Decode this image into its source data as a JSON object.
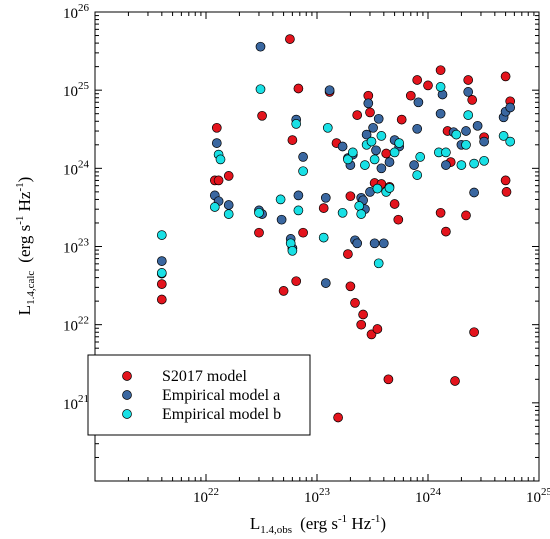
{
  "chart_data": {
    "type": "scatter",
    "title": "",
    "xscale": "log",
    "yscale": "log",
    "xlim": [
      1e+21,
      1e+25
    ],
    "ylim": [
      1e+20,
      1e+26
    ],
    "grid": false,
    "legend_position": "bottom-left",
    "xlabel": {
      "base": "L",
      "sub": "1.4,obs",
      "units_a": "(erg s",
      "sup_a": "-1",
      "units_b": " Hz",
      "sup_b": "-1",
      "units_c": ")"
    },
    "ylabel": {
      "base": "L",
      "sub": "1.4,calc",
      "units_a": "(erg s",
      "sup_a": "-1",
      "units_b": " Hz",
      "sup_b": "-1",
      "units_c": ")"
    },
    "x_ticks": [
      {
        "base": "10",
        "exp": "22",
        "value": 1e+22
      },
      {
        "base": "10",
        "exp": "23",
        "value": 1e+23
      },
      {
        "base": "10",
        "exp": "24",
        "value": 1e+24
      },
      {
        "base": "10",
        "exp": "25",
        "value": 1e+25
      }
    ],
    "y_ticks": [
      {
        "base": "10",
        "exp": "21",
        "value": 1e+21
      },
      {
        "base": "10",
        "exp": "22",
        "value": 1e+22
      },
      {
        "base": "10",
        "exp": "23",
        "value": 1e+23
      },
      {
        "base": "10",
        "exp": "24",
        "value": 1e+24
      },
      {
        "base": "10",
        "exp": "25",
        "value": 1e+25
      },
      {
        "base": "10",
        "exp": "26",
        "value": 1e+26
      }
    ],
    "series": [
      {
        "name": "S2017 model",
        "color": "#e3141d",
        "points": [
          [
            4e+21,
            3.3e+22
          ],
          [
            4e+21,
            2.1e+22
          ],
          [
            1.2e+22,
            7e+23
          ],
          [
            1.25e+22,
            3.3e+24
          ],
          [
            1.3e+22,
            7e+23
          ],
          [
            1.6e+22,
            8e+23
          ],
          [
            3e+22,
            1.5e+23
          ],
          [
            3.2e+22,
            4.7e+24
          ],
          [
            5e+22,
            2.7e+22
          ],
          [
            5.7e+22,
            4.5e+25
          ],
          [
            6e+22,
            2.3e+24
          ],
          [
            6.5e+22,
            3.6e+22
          ],
          [
            6.8e+22,
            1.05e+25
          ],
          [
            7.5e+22,
            1.5e+23
          ],
          [
            1.15e+23,
            3.1e+23
          ],
          [
            1.3e+23,
            9.5e+24
          ],
          [
            1.5e+23,
            2.1e+24
          ],
          [
            1.55e+23,
            6.5e+20
          ],
          [
            1.9e+23,
            8e+22
          ],
          [
            2e+23,
            4.4e+23
          ],
          [
            2e+23,
            3.1e+22
          ],
          [
            2.2e+23,
            1.9e+22
          ],
          [
            2.3e+23,
            4.8e+24
          ],
          [
            2.5e+23,
            1e+22
          ],
          [
            2.6e+23,
            1.35e+22
          ],
          [
            2.9e+23,
            8.5e+24
          ],
          [
            3e+23,
            5.2e+24
          ],
          [
            3.1e+23,
            7.5e+21
          ],
          [
            3.3e+23,
            6.5e+23
          ],
          [
            3.5e+23,
            8.8e+21
          ],
          [
            3.8e+23,
            6.3e+23
          ],
          [
            4.2e+23,
            1.55e+24
          ],
          [
            4.4e+23,
            2e+21
          ],
          [
            4.5e+23,
            5.8e+23
          ],
          [
            5e+23,
            3.5e+23
          ],
          [
            5.4e+23,
            2.2e+23
          ],
          [
            5.8e+23,
            4.2e+24
          ],
          [
            7e+23,
            8.5e+24
          ],
          [
            8e+23,
            1.35e+25
          ],
          [
            1e+24,
            1.15e+25
          ],
          [
            1.3e+24,
            1.8e+25
          ],
          [
            1.3e+24,
            2.7e+23
          ],
          [
            1.45e+24,
            1.55e+23
          ],
          [
            1.5e+24,
            3e+24
          ],
          [
            1.6e+24,
            1.2e+24
          ],
          [
            1.75e+24,
            1.9e+21
          ],
          [
            2.2e+24,
            2.5e+23
          ],
          [
            2.3e+24,
            1.35e+25
          ],
          [
            2.5e+24,
            7.5e+24
          ],
          [
            2.6e+24,
            8e+21
          ],
          [
            3.2e+24,
            2.5e+24
          ],
          [
            5e+24,
            1.5e+25
          ],
          [
            5e+24,
            7e+23
          ],
          [
            5.1e+24,
            5e+23
          ],
          [
            5.5e+24,
            7.2e+24
          ]
        ]
      },
      {
        "name": "Empirical model a",
        "color": "#3a67a0",
        "points": [
          [
            4e+21,
            6.5e+22
          ],
          [
            4e+21,
            4.5e+22
          ],
          [
            1.2e+22,
            4.5e+23
          ],
          [
            1.25e+22,
            2.1e+24
          ],
          [
            1.3e+22,
            3.8e+23
          ],
          [
            1.6e+22,
            3.4e+23
          ],
          [
            3e+22,
            2.9e+23
          ],
          [
            3.1e+22,
            3.6e+25
          ],
          [
            3.2e+22,
            2.6e+23
          ],
          [
            4.8e+22,
            2.2e+23
          ],
          [
            5.8e+22,
            1.25e+23
          ],
          [
            6e+22,
            9.5e+22
          ],
          [
            6.5e+22,
            4.2e+24
          ],
          [
            6.8e+22,
            4.5e+23
          ],
          [
            7.5e+22,
            1.4e+24
          ],
          [
            1.2e+23,
            4.2e+23
          ],
          [
            1.2e+23,
            3.4e+22
          ],
          [
            1.3e+23,
            1e+25
          ],
          [
            1.7e+23,
            1.9e+24
          ],
          [
            1.9e+23,
            1.35e+24
          ],
          [
            2e+23,
            1.1e+24
          ],
          [
            2.1e+23,
            1.5e+24
          ],
          [
            2.2e+23,
            1.2e+23
          ],
          [
            2.3e+23,
            1.1e+23
          ],
          [
            2.5e+23,
            4.2e+23
          ],
          [
            2.6e+23,
            3.9e+23
          ],
          [
            2.7e+23,
            3e+23
          ],
          [
            2.8e+23,
            2.7e+24
          ],
          [
            2.9e+23,
            6.8e+24
          ],
          [
            3e+23,
            5e+23
          ],
          [
            3.2e+23,
            3.3e+24
          ],
          [
            3.3e+23,
            1.1e+23
          ],
          [
            3.4e+23,
            1.7e+24
          ],
          [
            3.6e+23,
            4.3e+24
          ],
          [
            3.8e+23,
            1e+24
          ],
          [
            4e+23,
            1.1e+23
          ],
          [
            4.5e+23,
            1.2e+24
          ],
          [
            5e+23,
            2.3e+24
          ],
          [
            5.5e+23,
            1.9e+24
          ],
          [
            7.5e+23,
            1.1e+24
          ],
          [
            8e+23,
            3.2e+24
          ],
          [
            8.2e+23,
            7e+24
          ],
          [
            1.3e+24,
            5e+24
          ],
          [
            1.35e+24,
            8.8e+24
          ],
          [
            1.45e+24,
            1.1e+24
          ],
          [
            1.7e+24,
            2.9e+24
          ],
          [
            2e+24,
            2e+24
          ],
          [
            2.2e+24,
            3e+24
          ],
          [
            2.3e+24,
            9.5e+24
          ],
          [
            2.6e+24,
            4.9e+23
          ],
          [
            2.8e+24,
            3.5e+24
          ],
          [
            3.2e+24,
            2.2e+24
          ],
          [
            4.8e+24,
            4.5e+24
          ],
          [
            5e+24,
            5.3e+24
          ],
          [
            5.5e+24,
            6e+24
          ]
        ]
      },
      {
        "name": "Empirical model b",
        "color": "#19e0e5",
        "points": [
          [
            4e+21,
            1.4e+23
          ],
          [
            4e+21,
            4.6e+22
          ],
          [
            1.2e+22,
            3.2e+23
          ],
          [
            1.3e+22,
            1.5e+24
          ],
          [
            1.35e+22,
            1.3e+24
          ],
          [
            1.6e+22,
            2.6e+23
          ],
          [
            3e+22,
            2.7e+23
          ],
          [
            3.1e+22,
            1.03e+25
          ],
          [
            4.7e+22,
            4e+23
          ],
          [
            5.8e+22,
            1.1e+23
          ],
          [
            6e+22,
            8.8e+22
          ],
          [
            6.5e+22,
            3.7e+24
          ],
          [
            6.8e+22,
            2.9e+23
          ],
          [
            7.5e+22,
            9.2e+23
          ],
          [
            1.15e+23,
            1.3e+23
          ],
          [
            1.25e+23,
            3.3e+24
          ],
          [
            1.7e+23,
            2.7e+23
          ],
          [
            1.9e+23,
            1.3e+24
          ],
          [
            2.1e+23,
            1.6e+24
          ],
          [
            2.4e+23,
            3.3e+23
          ],
          [
            2.5e+23,
            2.6e+23
          ],
          [
            2.7e+23,
            1.1e+24
          ],
          [
            2.8e+23,
            2e+24
          ],
          [
            3.1e+23,
            2.2e+24
          ],
          [
            3.3e+23,
            1.3e+24
          ],
          [
            3.5e+23,
            5.5e+23
          ],
          [
            3.6e+23,
            6.1e+22
          ],
          [
            3.8e+23,
            2.6e+24
          ],
          [
            4.2e+23,
            5e+23
          ],
          [
            4.5e+23,
            5.6e+23
          ],
          [
            5e+23,
            1.6e+24
          ],
          [
            5.5e+23,
            2.1e+24
          ],
          [
            8e+23,
            8.2e+23
          ],
          [
            8.5e+23,
            1.4e+24
          ],
          [
            1.25e+24,
            1.6e+24
          ],
          [
            1.3e+24,
            1.1e+25
          ],
          [
            1.45e+24,
            1.6e+24
          ],
          [
            1.8e+24,
            2.7e+24
          ],
          [
            2e+24,
            1.1e+24
          ],
          [
            2.2e+24,
            2e+24
          ],
          [
            2.3e+24,
            4.8e+24
          ],
          [
            2.6e+24,
            1.15e+24
          ],
          [
            3.2e+24,
            1.25e+24
          ],
          [
            4.8e+24,
            2.6e+24
          ],
          [
            5.5e+24,
            2.2e+24
          ]
        ]
      }
    ]
  }
}
